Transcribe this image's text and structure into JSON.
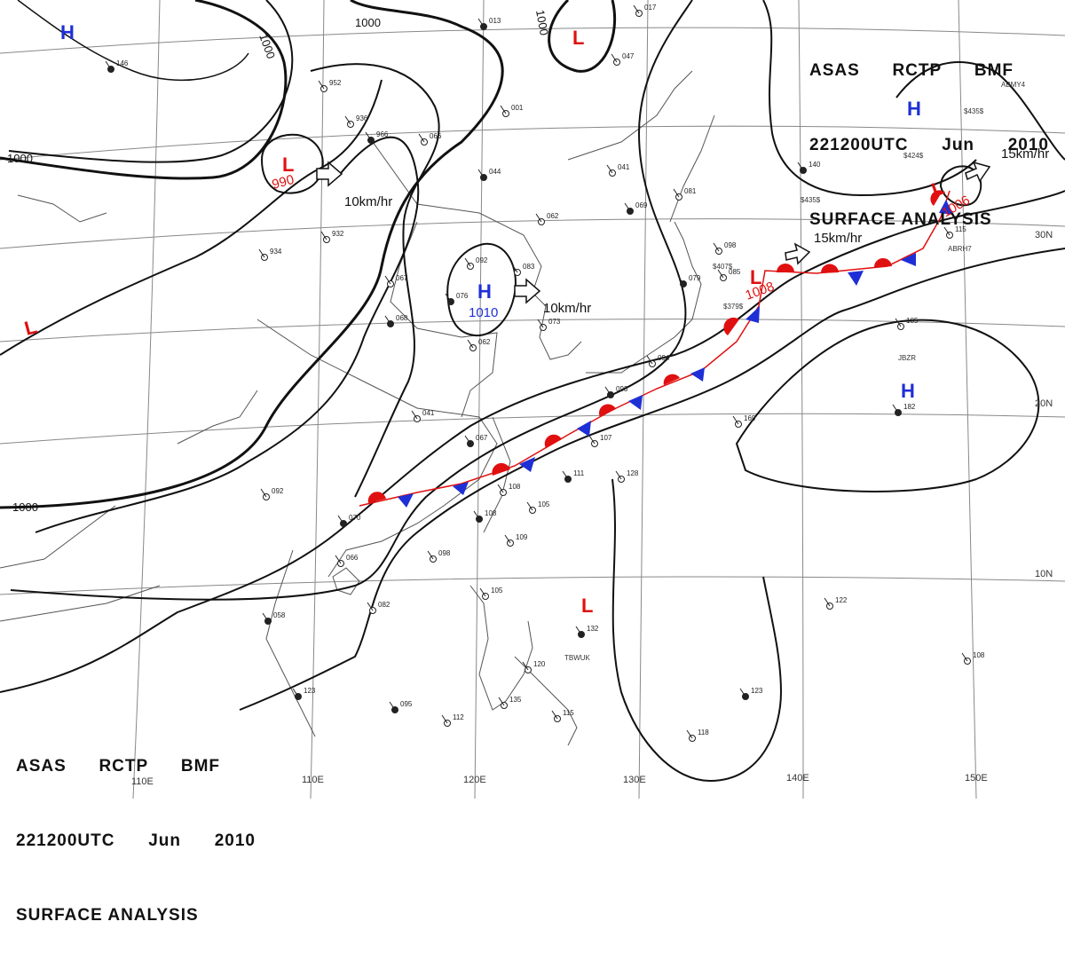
{
  "header": {
    "line1": [
      "ASAS",
      "RCTP",
      "BMF"
    ],
    "line2": [
      "221200UTC",
      "Jun",
      "2010"
    ],
    "line3": "SURFACE ANALYSIS"
  },
  "colors": {
    "high": "#1f2fd6",
    "low": "#e01010",
    "warm_front": "#e01010",
    "cold_front": "#1f2fd6",
    "isobar": "#111111",
    "coast": "#555555",
    "grid": "#888888"
  },
  "grid_labels": {
    "longitudes": [
      "110E",
      "120E",
      "130E",
      "140E",
      "150E"
    ],
    "latitudes": [
      "30N",
      "20N",
      "10N"
    ]
  },
  "isobar_labels": [
    "1000",
    "1000",
    "1000",
    "1000",
    "1000"
  ],
  "pressure_systems": [
    {
      "type": "H",
      "value": ""
    },
    {
      "type": "L",
      "value": "990"
    },
    {
      "type": "H",
      "value": "1010"
    },
    {
      "type": "L",
      "value": ""
    },
    {
      "type": "L",
      "value": "1008"
    },
    {
      "type": "L",
      "value": "1006"
    },
    {
      "type": "H",
      "value": ""
    },
    {
      "type": "H",
      "value": ""
    },
    {
      "type": "L",
      "value": ""
    },
    {
      "type": "L",
      "value": ""
    }
  ],
  "motion_labels": [
    "10km/hr",
    "10km/hr",
    "15km/hr",
    "15km/hr"
  ],
  "station_labels": [
    "TBWUK",
    "JBZR",
    "ABRH7",
    "ABMY4",
    "$435$",
    "$424$",
    "$435$",
    "$407$",
    "$379$"
  ],
  "station_obs": [
    "146",
    "952",
    "936",
    "966",
    "932",
    "934",
    "013",
    "001",
    "066",
    "044",
    "041",
    "062",
    "069",
    "092",
    "083",
    "076",
    "073",
    "067",
    "068",
    "062",
    "081",
    "079",
    "098",
    "085",
    "140",
    "115",
    "185",
    "182",
    "169",
    "041",
    "067",
    "107",
    "128",
    "111",
    "108",
    "105",
    "108",
    "109",
    "098",
    "070",
    "066",
    "082",
    "058",
    "105",
    "120",
    "132",
    "122",
    "108",
    "123",
    "118",
    "112",
    "095",
    "135",
    "115",
    "123",
    "092",
    "094",
    "093",
    "017",
    "047"
  ]
}
